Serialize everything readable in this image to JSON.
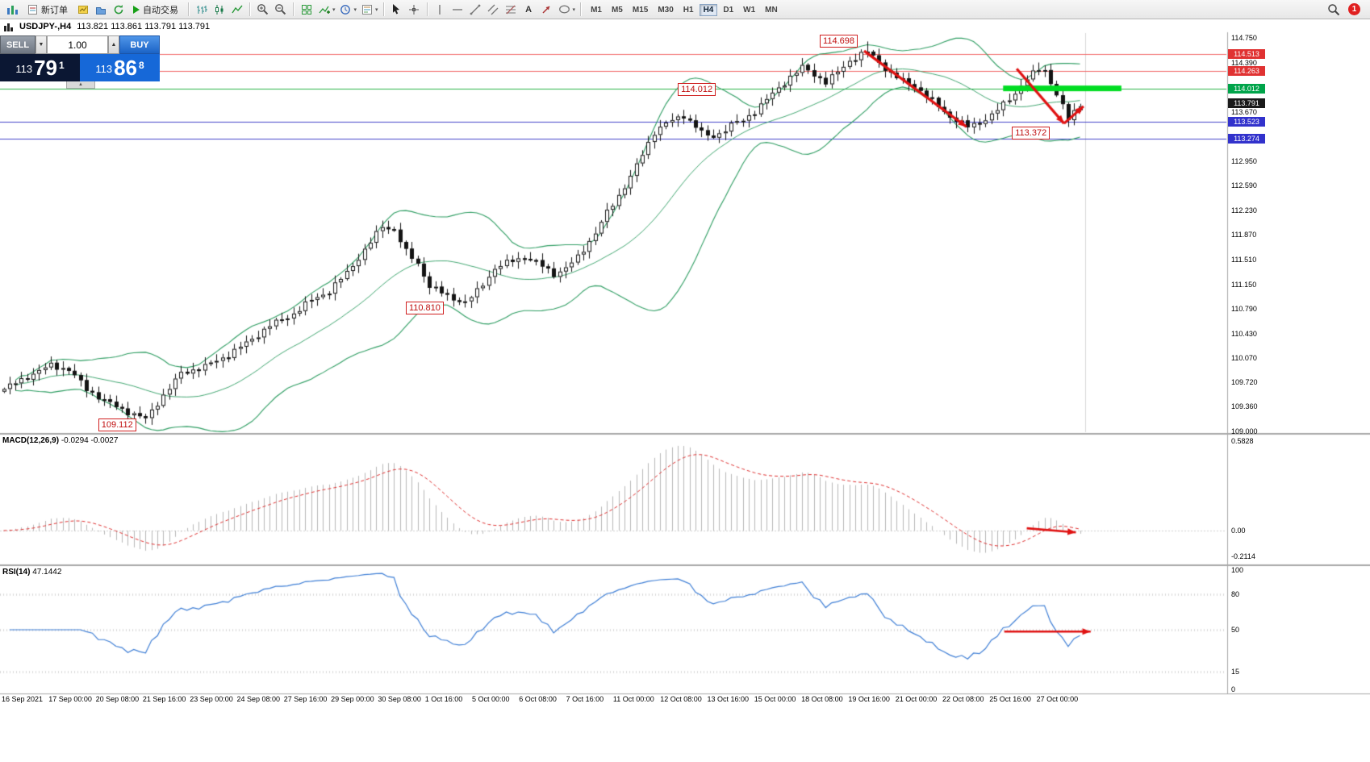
{
  "toolbar": {
    "new_order_label": "新订单",
    "autotrade_label": "自动交易",
    "timeframes": [
      "M1",
      "M5",
      "M15",
      "M30",
      "H1",
      "H4",
      "D1",
      "W1",
      "MN"
    ],
    "active_timeframe": "H4",
    "notification_count": "1"
  },
  "chart_header": {
    "symbol": "USDJPY-,H4",
    "ohlc": "113.821 113.861 113.791 113.791"
  },
  "trade_panel": {
    "sell_label": "SELL",
    "buy_label": "BUY",
    "volume": "1.00",
    "sell_price": {
      "main": "113",
      "pips": "79",
      "frac": "1"
    },
    "buy_price": {
      "main": "113",
      "pips": "86",
      "frac": "8"
    }
  },
  "price_axis": {
    "ticks": [
      "114.750",
      "114.390",
      "113.670",
      "112.950",
      "112.590",
      "112.230",
      "111.870",
      "111.510",
      "111.150",
      "110.790",
      "110.430",
      "110.070",
      "109.720",
      "109.360",
      "109.000"
    ],
    "tags": [
      {
        "label": "114.513",
        "bg": "#e03232"
      },
      {
        "label": "114.263",
        "bg": "#e03232"
      },
      {
        "label": "114.012",
        "bg": "#00a44a"
      },
      {
        "label": "113.791",
        "bg": "#1a1a1a"
      },
      {
        "label": "113.523",
        "bg": "#3232cc"
      },
      {
        "label": "113.274",
        "bg": "#3232cc"
      }
    ]
  },
  "macd": {
    "name": "MACD(12,26,9)",
    "values": "-0.0294 -0.0027",
    "scale": [
      "0.5828",
      "0.00",
      "-0.2114"
    ]
  },
  "rsi": {
    "name": "RSI(14)",
    "value": "47.1442",
    "scale": [
      "100",
      "80",
      "50",
      "15",
      "0"
    ]
  },
  "chart_data": {
    "type": "candlestick",
    "symbol": "USDJPY-",
    "timeframe": "H4",
    "title": "USDJPY-,H4 113.821 113.861 113.791 113.791",
    "bars": 183,
    "ylim": [
      109.0,
      114.75
    ],
    "keypoints": [
      [
        0,
        109.62
      ],
      [
        4,
        109.8
      ],
      [
        8,
        109.97
      ],
      [
        11,
        109.9
      ],
      [
        14,
        109.62
      ],
      [
        17,
        109.45
      ],
      [
        20,
        109.32
      ],
      [
        24,
        109.18
      ],
      [
        26,
        109.42
      ],
      [
        30,
        109.85
      ],
      [
        34,
        109.95
      ],
      [
        38,
        110.12
      ],
      [
        42,
        110.35
      ],
      [
        45,
        110.55
      ],
      [
        49,
        110.72
      ],
      [
        52,
        110.92
      ],
      [
        55,
        111.05
      ],
      [
        58,
        111.32
      ],
      [
        61,
        111.65
      ],
      [
        64,
        112
      ],
      [
        66,
        111.95
      ],
      [
        68,
        111.62
      ],
      [
        70,
        111.45
      ],
      [
        72,
        111.12
      ],
      [
        75,
        110.98
      ],
      [
        78,
        110.88
      ],
      [
        80,
        111.05
      ],
      [
        83,
        111.38
      ],
      [
        86,
        111.5
      ],
      [
        88,
        111.55
      ],
      [
        91,
        111.42
      ],
      [
        93,
        111.3
      ],
      [
        95,
        111.38
      ],
      [
        97,
        111.55
      ],
      [
        100,
        111.9
      ],
      [
        102,
        112.2
      ],
      [
        104,
        112.45
      ],
      [
        106,
        112.72
      ],
      [
        108,
        113.05
      ],
      [
        110,
        113.38
      ],
      [
        112,
        113.5
      ],
      [
        115,
        113.62
      ],
      [
        117,
        113.45
      ],
      [
        119,
        113.3
      ],
      [
        121,
        113.35
      ],
      [
        123,
        113.48
      ],
      [
        125,
        113.55
      ],
      [
        127,
        113.68
      ],
      [
        129,
        113.85
      ],
      [
        131,
        114.02
      ],
      [
        133,
        114.18
      ],
      [
        135,
        114.32
      ],
      [
        137,
        114.22
      ],
      [
        139,
        114.1
      ],
      [
        141,
        114.25
      ],
      [
        143,
        114.42
      ],
      [
        146,
        114.55
      ],
      [
        148,
        114.4
      ],
      [
        150,
        114.22
      ],
      [
        152,
        114.12
      ],
      [
        154,
        114.05
      ],
      [
        156,
        113.9
      ],
      [
        158,
        113.75
      ],
      [
        160,
        113.6
      ],
      [
        163,
        113.45
      ],
      [
        165,
        113.52
      ],
      [
        167,
        113.62
      ],
      [
        169,
        113.78
      ],
      [
        171,
        113.95
      ],
      [
        173,
        114.15
      ],
      [
        175,
        114.3
      ],
      [
        176,
        114.28
      ],
      [
        178,
        113.92
      ],
      [
        180,
        113.56
      ],
      [
        182,
        113.79
      ]
    ],
    "extremes": [
      {
        "i": 24,
        "low": 109.112
      },
      {
        "i": 64,
        "high": 112.08
      },
      {
        "i": 78,
        "low": 110.81
      },
      {
        "i": 146,
        "high": 114.698
      },
      {
        "i": 163,
        "low": 113.372
      },
      {
        "i": 175,
        "high": 114.39
      }
    ],
    "bollinger": {
      "period": 20,
      "deviation": 2
    },
    "levels": [
      {
        "price": 114.513,
        "color": "#f26666"
      },
      {
        "price": 114.263,
        "color": "#f26666"
      },
      {
        "price": 114.012,
        "color": "#2db34a"
      },
      {
        "price": 113.523,
        "color": "#4646cc"
      },
      {
        "price": 113.274,
        "color": "#4646cc"
      }
    ],
    "highlight_segment": {
      "price": 114.012,
      "bar_from": 169,
      "bar_to": 189,
      "color": "#00dd22",
      "thickness": 7
    },
    "annotations": [
      {
        "text": "114.698",
        "bar": 138,
        "price": 114.7
      },
      {
        "text": "114.012",
        "bar": 114,
        "price": 114.0
      },
      {
        "text": "110.810",
        "bar": 68,
        "price": 110.8
      },
      {
        "text": "109.112",
        "bar": 16,
        "price": 109.1
      },
      {
        "text": "113.372",
        "bar": 170.5,
        "price": 113.36
      }
    ],
    "trend_arrows": [
      {
        "x1_bar": 145.5,
        "p1": 114.56,
        "x2_bar": 162.8,
        "p2": 113.45
      },
      {
        "x1_bar": 171.3,
        "p1": 114.3,
        "x2_bar": 179.3,
        "p2": 113.5
      },
      {
        "x1_bar": 179.3,
        "p1": 113.5,
        "x2_bar": 182.6,
        "p2": 113.75
      }
    ],
    "macd_arrow": {
      "x1_bar": 173,
      "v1": 0.015,
      "x2_bar": 181.3,
      "v2": -0.012
    },
    "rsi_arrow": {
      "x1_bar": 169.2,
      "v1": 48.5,
      "x2_bar": 183.8,
      "v2": 48.5
    },
    "x_ticks": [
      "16 Sep 2021",
      "17 Sep 00:00",
      "20 Sep 08:00",
      "21 Sep 16:00",
      "23 Sep 00:00",
      "24 Sep 08:00",
      "27 Sep 16:00",
      "29 Sep 00:00",
      "30 Sep 08:00",
      "1 Oct 16:00",
      "5 Oct 00:00",
      "6 Oct 08:00",
      "7 Oct 16:00",
      "11 Oct 00:00",
      "12 Oct 08:00",
      "13 Oct 16:00",
      "15 Oct 00:00",
      "18 Oct 08:00",
      "19 Oct 16:00",
      "21 Oct 00:00",
      "22 Oct 08:00",
      "25 Oct 16:00",
      "27 Oct 00:00"
    ],
    "colors": {
      "candle_up": "#ffffff",
      "candle_down": "#141414",
      "candle_border": "#141414",
      "bollinger": "#2f9e63",
      "macd_hist": "#b8b8b8",
      "macd_signal": "#e03030",
      "rsi_line": "#3f7fd6",
      "arrow": "#e01212"
    }
  }
}
